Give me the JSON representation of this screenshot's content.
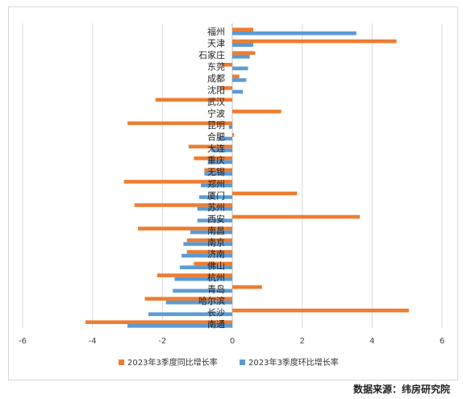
{
  "source": "数据来源：纬房研究院",
  "colors": {
    "yoy": "#ED7D31",
    "qoq": "#5B9BD5",
    "grid": "#d9d9d9",
    "axis": "#bfbfbf"
  },
  "chart_data": {
    "type": "bar",
    "orientation": "horizontal",
    "title": "",
    "xlabel": "",
    "ylabel": "",
    "xlim": [
      -6,
      6
    ],
    "xticks": [
      -6,
      -4,
      -2,
      0,
      2,
      4,
      6
    ],
    "grid": true,
    "legend_position": "bottom",
    "categories": [
      "福州",
      "天津",
      "石家庄",
      "东莞",
      "成都",
      "沈阳",
      "武汉",
      "宁波",
      "昆明",
      "合肥",
      "大连",
      "重庆",
      "无锡",
      "郑州",
      "厦门",
      "苏州",
      "西安",
      "南昌",
      "南京",
      "济南",
      "佛山",
      "杭州",
      "青岛",
      "哈尔滨",
      "长沙",
      "南通"
    ],
    "series": [
      {
        "name": "2023年3季度同比增长率",
        "color": "#ED7D31",
        "values": [
          0.6,
          4.7,
          0.65,
          -0.3,
          0.2,
          -0.35,
          -2.2,
          1.4,
          -3.0,
          0.05,
          -1.25,
          -1.1,
          -0.8,
          -3.1,
          1.85,
          -2.8,
          3.65,
          -2.7,
          -1.3,
          -1.3,
          -1.1,
          -2.15,
          0.85,
          -2.5,
          5.05,
          -4.2
        ]
      },
      {
        "name": "2023年3季度环比增长率",
        "color": "#5B9BD5",
        "values": [
          3.55,
          0.6,
          0.5,
          0.45,
          0.4,
          0.3,
          0.0,
          0.0,
          -0.1,
          -0.4,
          -0.6,
          -0.7,
          -0.8,
          -0.9,
          -0.95,
          -1.0,
          -1.0,
          -1.2,
          -1.4,
          -1.45,
          -1.5,
          -1.65,
          -1.7,
          -1.9,
          -2.4,
          -3.0
        ]
      }
    ]
  }
}
